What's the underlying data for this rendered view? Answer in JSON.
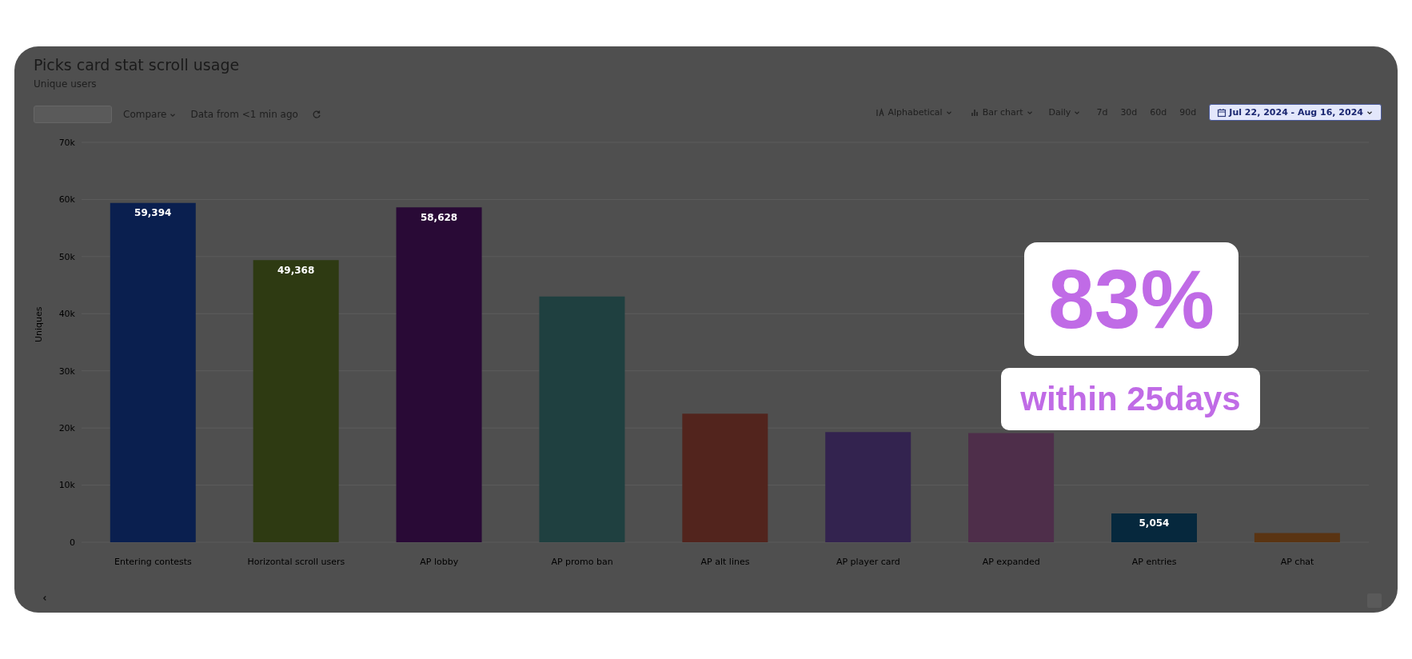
{
  "chart_data": {
    "type": "bar",
    "title": "Picks card stat scroll usage",
    "subtitle": "Unique users",
    "ylabel": "Uniques",
    "categories": [
      "Entering contests",
      "Horizontal scroll users",
      "AP lobby",
      "AP promo ban",
      "AP alt lines",
      "AP player card",
      "AP expanded",
      "AP entries",
      "AP chat"
    ],
    "values": [
      59394,
      49368,
      58628,
      43000,
      22500,
      19300,
      19100,
      5054,
      1600
    ],
    "value_labels": [
      "59,394",
      "49,368",
      "58,628",
      null,
      null,
      null,
      null,
      "5,054",
      null
    ],
    "colors": [
      "#0a1f4f",
      "#2e3a12",
      "#290a36",
      "#1f4040",
      "#52241d",
      "#33234f",
      "#4e2e4a",
      "#06283d",
      "#5a3412"
    ],
    "ylim": [
      0,
      70000
    ],
    "yticks": [
      0,
      {
        "value": 10000,
        "label": "10k"
      },
      {
        "value": 20000,
        "label": "20k"
      },
      {
        "value": 30000,
        "label": "30k"
      },
      {
        "value": 40000,
        "label": "40k"
      },
      {
        "value": 50000,
        "label": "50k"
      },
      {
        "value": 60000,
        "label": "60k"
      },
      {
        "value": 70000,
        "label": "70k"
      }
    ],
    "grid": "y",
    "legend": false,
    "annotations": [
      "83%",
      "within 25days",
      "Compare",
      "Data from <1 min ago",
      "Alphabetical",
      "Bar chart",
      "Daily",
      "7d",
      "30d",
      "60d",
      "90d",
      "Jul 22, 2024 - Aug 16, 2024"
    ]
  }
}
